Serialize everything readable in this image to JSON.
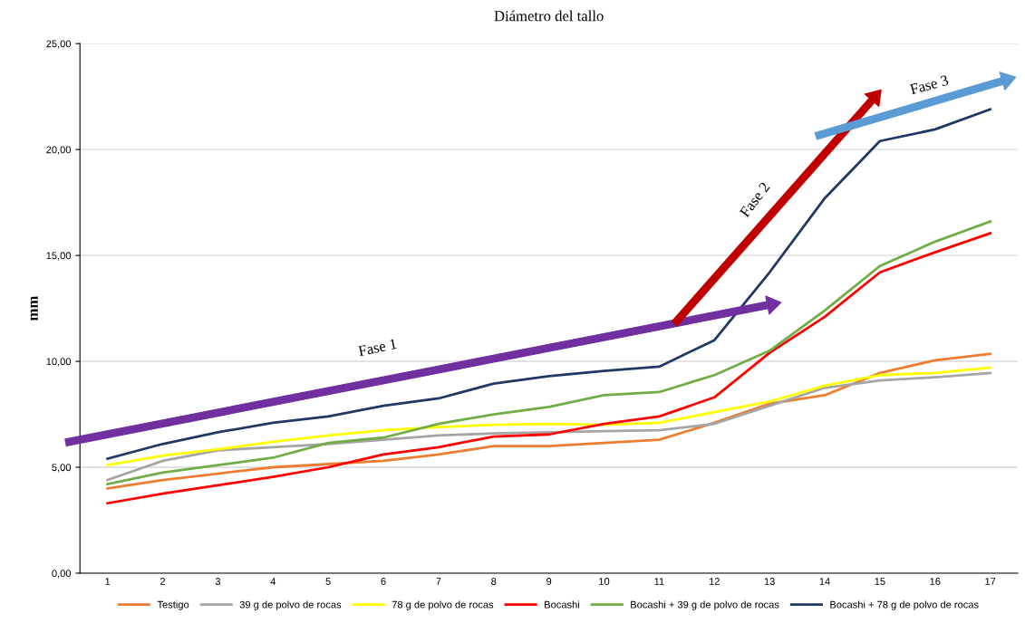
{
  "chart_data": {
    "type": "line",
    "title": "Diámetro del tallo",
    "ylabel": "mm",
    "categories": [
      "1",
      "2",
      "3",
      "4",
      "5",
      "6",
      "7",
      "8",
      "9",
      "10",
      "11",
      "12",
      "13",
      "14",
      "15",
      "16",
      "17"
    ],
    "series": [
      {
        "name": "Testigo",
        "color": "#ed7d31",
        "values": [
          4.0,
          4.4,
          4.7,
          5.0,
          5.15,
          5.3,
          5.6,
          6.0,
          6.0,
          6.15,
          6.3,
          7.1,
          8.0,
          8.4,
          9.45,
          10.05,
          10.35
        ]
      },
      {
        "name": "39 g de polvo de rocas",
        "color": "#a5a5a5",
        "values": [
          4.4,
          5.3,
          5.8,
          5.95,
          6.1,
          6.3,
          6.5,
          6.6,
          6.65,
          6.7,
          6.75,
          7.05,
          7.9,
          8.75,
          9.1,
          9.25,
          9.45
        ]
      },
      {
        "name": "78 g de polvo de rocas",
        "color": "#ffff00",
        "values": [
          5.1,
          5.55,
          5.85,
          6.2,
          6.5,
          6.75,
          6.9,
          7.0,
          7.05,
          7.0,
          7.1,
          7.6,
          8.1,
          8.85,
          9.35,
          9.45,
          9.7
        ]
      },
      {
        "name": "Bocashi",
        "color": "#ff0000",
        "values": [
          3.3,
          3.75,
          4.15,
          4.55,
          5.0,
          5.6,
          5.95,
          6.45,
          6.55,
          7.05,
          7.4,
          8.3,
          10.4,
          12.1,
          14.2,
          15.15,
          16.05
        ]
      },
      {
        "name": "Bocashi + 39 g de polvo de rocas",
        "color": "#70ad47",
        "values": [
          4.2,
          4.75,
          5.1,
          5.45,
          6.15,
          6.4,
          7.05,
          7.5,
          7.85,
          8.4,
          8.55,
          9.35,
          10.5,
          12.4,
          14.5,
          15.65,
          16.6
        ]
      },
      {
        "name": "Bocashi + 78 g de polvo de rocas",
        "color": "#203864",
        "values": [
          5.4,
          6.1,
          6.65,
          7.1,
          7.4,
          7.9,
          8.25,
          8.95,
          9.3,
          9.55,
          9.75,
          11.0,
          14.2,
          17.7,
          20.4,
          20.95,
          21.9
        ]
      }
    ],
    "ylim": [
      0,
      25
    ],
    "yticks": [
      {
        "value": 0,
        "label": "0,00"
      },
      {
        "value": 5,
        "label": "5,00"
      },
      {
        "value": 10,
        "label": "10,00"
      },
      {
        "value": 15,
        "label": "15,00"
      },
      {
        "value": 20,
        "label": "20,00"
      },
      {
        "value": 25,
        "label": "25,00"
      }
    ],
    "grid": "y",
    "legend": "bottom",
    "marker": "none",
    "line_style": "solid",
    "annotations": [
      "Fase 1",
      "Fase 2",
      "Fase 3"
    ]
  }
}
